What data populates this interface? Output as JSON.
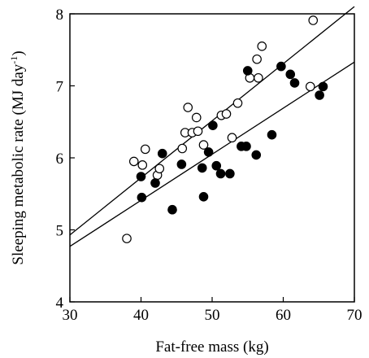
{
  "chart_data": {
    "type": "scatter",
    "title": "",
    "xlabel": "Fat-free mass (kg)",
    "ylabel": "Sleeping metabolic rate (MJ day",
    "ylabel_sup": "-1",
    "ylabel_close": ")",
    "xlim": [
      30,
      70
    ],
    "ylim": [
      4,
      8
    ],
    "xticks": [
      "30",
      "40",
      "50",
      "60",
      "70"
    ],
    "yticks": [
      "4",
      "5",
      "6",
      "7",
      "8"
    ],
    "grid": false,
    "legend": "none",
    "series": [
      {
        "marker": "open-circle",
        "points": [
          [
            38.0,
            4.88
          ],
          [
            39.0,
            5.95
          ],
          [
            40.2,
            5.9
          ],
          [
            40.6,
            6.12
          ],
          [
            42.3,
            5.76
          ],
          [
            42.6,
            5.85
          ],
          [
            45.8,
            6.13
          ],
          [
            46.2,
            6.35
          ],
          [
            46.6,
            6.7
          ],
          [
            47.2,
            6.35
          ],
          [
            47.8,
            6.56
          ],
          [
            48.0,
            6.37
          ],
          [
            48.8,
            6.18
          ],
          [
            51.3,
            6.59
          ],
          [
            52.0,
            6.61
          ],
          [
            52.8,
            6.28
          ],
          [
            53.6,
            6.76
          ],
          [
            55.3,
            7.11
          ],
          [
            56.3,
            7.37
          ],
          [
            56.5,
            7.11
          ],
          [
            57.0,
            7.55
          ],
          [
            63.8,
            6.99
          ],
          [
            64.2,
            7.91
          ]
        ],
        "fit": [
          [
            30,
            4.93
          ],
          [
            70,
            8.1
          ]
        ]
      },
      {
        "marker": "filled-circle",
        "points": [
          [
            40.0,
            5.74
          ],
          [
            40.1,
            5.45
          ],
          [
            42.0,
            5.65
          ],
          [
            43.0,
            6.06
          ],
          [
            44.4,
            5.28
          ],
          [
            45.7,
            5.91
          ],
          [
            48.6,
            5.86
          ],
          [
            48.8,
            5.46
          ],
          [
            49.5,
            6.08
          ],
          [
            50.1,
            6.45
          ],
          [
            50.6,
            5.89
          ],
          [
            51.2,
            5.78
          ],
          [
            52.5,
            5.78
          ],
          [
            54.1,
            6.16
          ],
          [
            54.8,
            6.16
          ],
          [
            55.0,
            7.21
          ],
          [
            56.2,
            6.04
          ],
          [
            58.4,
            6.32
          ],
          [
            59.7,
            7.27
          ],
          [
            61.0,
            7.16
          ],
          [
            61.6,
            7.04
          ],
          [
            65.1,
            6.87
          ],
          [
            65.6,
            6.99
          ]
        ],
        "fit": [
          [
            30,
            4.77
          ],
          [
            70,
            7.33
          ]
        ]
      }
    ]
  }
}
